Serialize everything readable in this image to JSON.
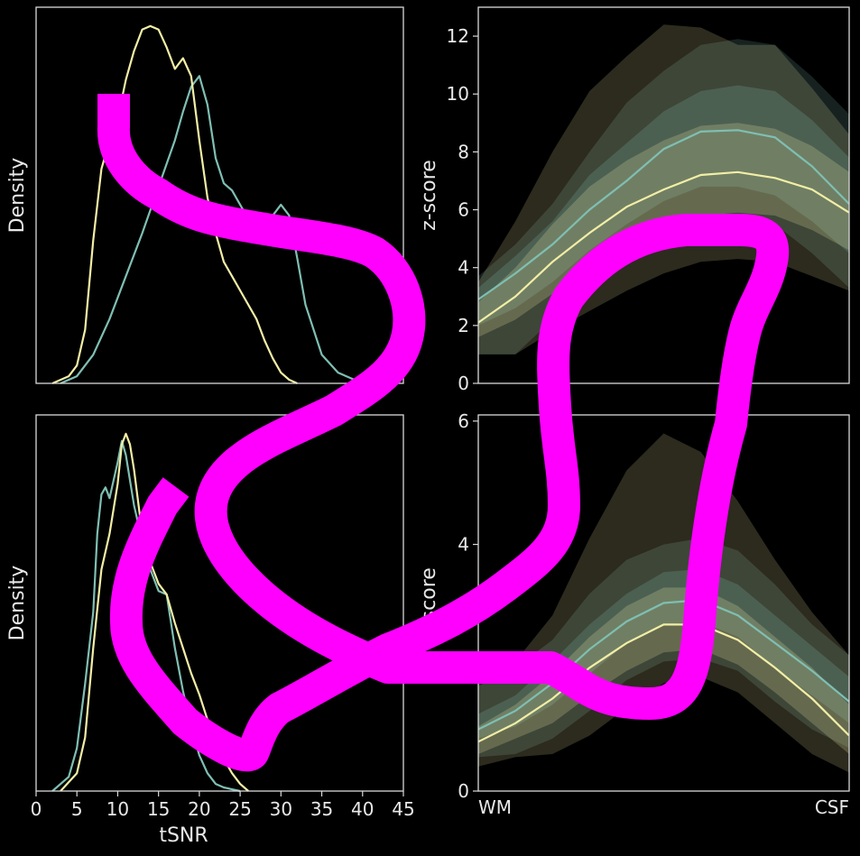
{
  "colors": {
    "background": "#000000",
    "frame": "#d9d9d9",
    "series_a": "#7fbfb3",
    "series_b": "#f2eea6",
    "overlay_scribble": "#ff00ff"
  },
  "chart_data": [
    {
      "type": "line",
      "kind": "density",
      "xlim": [
        0,
        45
      ],
      "ylim": [
        0,
        1
      ],
      "xlabel": "",
      "ylabel": "Density",
      "show_xticks": false,
      "show_yticks": false,
      "series": [
        {
          "color": "#7fbfb3",
          "x": [
            3,
            5,
            7,
            9,
            11,
            13,
            15,
            17,
            18,
            19,
            20,
            21,
            22,
            23,
            24,
            25,
            27,
            29,
            30,
            31,
            32,
            33,
            35,
            37,
            39,
            41
          ],
          "y": [
            0,
            0.02,
            0.08,
            0.18,
            0.3,
            0.42,
            0.55,
            0.68,
            0.76,
            0.83,
            0.86,
            0.78,
            0.63,
            0.56,
            0.54,
            0.5,
            0.42,
            0.47,
            0.5,
            0.47,
            0.35,
            0.22,
            0.08,
            0.03,
            0.01,
            0
          ]
        },
        {
          "color": "#f2eea6",
          "x": [
            2,
            4,
            5,
            6,
            7,
            8,
            9,
            10,
            11,
            12,
            13,
            14,
            15,
            16,
            17,
            18,
            19,
            20,
            21,
            22,
            23,
            24,
            25,
            27,
            28,
            29,
            30,
            31,
            32
          ],
          "y": [
            0,
            0.02,
            0.05,
            0.15,
            0.4,
            0.6,
            0.68,
            0.74,
            0.85,
            0.93,
            0.99,
            1.0,
            0.99,
            0.94,
            0.88,
            0.91,
            0.86,
            0.68,
            0.52,
            0.42,
            0.34,
            0.3,
            0.26,
            0.18,
            0.12,
            0.07,
            0.03,
            0.01,
            0
          ]
        }
      ]
    },
    {
      "type": "area",
      "xlim": [
        0,
        9
      ],
      "ylim": [
        0,
        13
      ],
      "yticks": [
        0,
        2,
        4,
        6,
        8,
        10,
        12
      ],
      "xlabel": "",
      "ylabel": "z-score",
      "series": [
        {
          "color": "#7fbfb3",
          "mean": [
            2.9,
            3.8,
            4.8,
            6.0,
            7.0,
            8.1,
            8.7,
            8.75,
            8.5,
            7.5,
            6.2
          ],
          "band_outer": {
            "lo": [
              1.0,
              1.0,
              2.2,
              3.4,
              4.5,
              5.3,
              5.8,
              5.4,
              5.5,
              4.5,
              3.3
            ],
            "hi": [
              3.7,
              4.8,
              6.2,
              8.0,
              9.7,
              10.8,
              11.7,
              11.9,
              11.7,
              10.6,
              9.3
            ]
          },
          "band_inner": {
            "lo": [
              2.0,
              2.6,
              3.5,
              4.6,
              5.5,
              6.3,
              6.8,
              6.8,
              6.5,
              5.6,
              4.5
            ],
            "hi": [
              3.3,
              4.4,
              5.6,
              7.2,
              8.3,
              9.4,
              10.1,
              10.3,
              10.1,
              9.1,
              7.8
            ]
          }
        },
        {
          "color": "#f2eea6",
          "mean": [
            2.1,
            3.0,
            4.2,
            5.2,
            6.1,
            6.7,
            7.2,
            7.3,
            7.1,
            6.7,
            5.9
          ],
          "band_outer": {
            "lo": [
              1.0,
              1.0,
              1.8,
              2.5,
              3.2,
              3.8,
              4.2,
              4.3,
              4.2,
              3.7,
              3.2
            ],
            "hi": [
              3.5,
              5.6,
              8.0,
              10.1,
              11.3,
              12.4,
              12.3,
              11.7,
              11.7,
              10.2,
              8.6
            ]
          },
          "band_inner": {
            "lo": [
              1.6,
              2.2,
              3.1,
              4.0,
              4.8,
              5.4,
              5.8,
              5.9,
              5.8,
              5.3,
              4.6
            ],
            "hi": [
              2.8,
              4.0,
              5.5,
              6.8,
              7.7,
              8.4,
              8.9,
              9.0,
              8.8,
              8.2,
              7.3
            ]
          }
        }
      ]
    },
    {
      "type": "line",
      "kind": "density",
      "xlim": [
        0,
        45
      ],
      "ylim": [
        0,
        1
      ],
      "xticks": [
        0,
        5,
        10,
        15,
        20,
        25,
        30,
        35,
        40,
        45
      ],
      "xlabel": "tSNR",
      "ylabel": "Density",
      "show_yticks": false,
      "series": [
        {
          "color": "#7fbfb3",
          "x": [
            2,
            4,
            5,
            6,
            7,
            7.5,
            8,
            8.5,
            9,
            10,
            10.5,
            11,
            12,
            13,
            14,
            15,
            16,
            17,
            18,
            19,
            20,
            21,
            22,
            23,
            25
          ],
          "y": [
            0,
            0.04,
            0.12,
            0.3,
            0.5,
            0.72,
            0.83,
            0.85,
            0.82,
            0.92,
            0.98,
            0.94,
            0.8,
            0.7,
            0.62,
            0.56,
            0.55,
            0.4,
            0.28,
            0.18,
            0.1,
            0.05,
            0.02,
            0.01,
            0
          ]
        },
        {
          "color": "#f2eea6",
          "x": [
            3,
            5,
            6,
            7,
            8,
            9,
            10,
            10.5,
            11,
            11.5,
            12,
            13,
            14,
            15,
            16,
            17,
            18,
            19,
            20,
            21,
            22,
            23,
            24,
            25,
            26
          ],
          "y": [
            0,
            0.05,
            0.15,
            0.4,
            0.62,
            0.72,
            0.86,
            0.97,
            1.0,
            0.97,
            0.9,
            0.72,
            0.64,
            0.58,
            0.55,
            0.47,
            0.4,
            0.33,
            0.27,
            0.2,
            0.15,
            0.09,
            0.05,
            0.02,
            0
          ]
        }
      ]
    },
    {
      "type": "area",
      "xlim": [
        0,
        9
      ],
      "ylim": [
        0,
        6.1
      ],
      "yticks": [
        0,
        2,
        4,
        6
      ],
      "ytick_labels": [
        "0",
        "",
        "4",
        "6"
      ],
      "xtick_labels_left": "WM",
      "xtick_labels_right": "CSF",
      "xlabel": "",
      "ylabel": "z-score",
      "series": [
        {
          "color": "#7fbfb3",
          "mean": [
            1.0,
            1.3,
            1.75,
            2.3,
            2.75,
            3.05,
            3.1,
            2.85,
            2.4,
            1.95,
            1.45
          ],
          "band_outer": {
            "lo": [
              0.55,
              0.6,
              0.85,
              1.3,
              1.8,
              2.1,
              2.15,
              1.95,
              1.45,
              1.0,
              0.7
            ],
            "hi": [
              1.7,
              2.0,
              2.45,
              3.2,
              3.75,
              4.0,
              4.1,
              3.9,
              3.35,
              2.7,
              2.2
            ]
          },
          "band_inner": {
            "lo": [
              0.85,
              1.05,
              1.4,
              1.9,
              2.4,
              2.7,
              2.75,
              2.5,
              2.0,
              1.55,
              1.1
            ],
            "hi": [
              1.25,
              1.55,
              2.1,
              2.7,
              3.2,
              3.55,
              3.6,
              3.35,
              2.85,
              2.35,
              1.85
            ]
          }
        },
        {
          "color": "#f2eea6",
          "mean": [
            0.8,
            1.1,
            1.5,
            2.0,
            2.4,
            2.7,
            2.7,
            2.45,
            2.0,
            1.5,
            0.9
          ],
          "band_outer": {
            "lo": [
              0.4,
              0.55,
              0.6,
              0.9,
              1.35,
              1.75,
              1.85,
              1.6,
              1.1,
              0.6,
              0.3
            ],
            "hi": [
              1.75,
              2.1,
              2.85,
              4.1,
              5.2,
              5.8,
              5.5,
              4.7,
              3.75,
              2.9,
              2.2
            ]
          },
          "band_inner": {
            "lo": [
              0.6,
              0.85,
              1.1,
              1.55,
              1.95,
              2.25,
              2.3,
              2.05,
              1.6,
              1.1,
              0.6
            ],
            "hi": [
              1.05,
              1.4,
              1.9,
              2.5,
              3.0,
              3.3,
              3.3,
              3.0,
              2.5,
              2.0,
              1.4
            ]
          }
        }
      ]
    }
  ]
}
